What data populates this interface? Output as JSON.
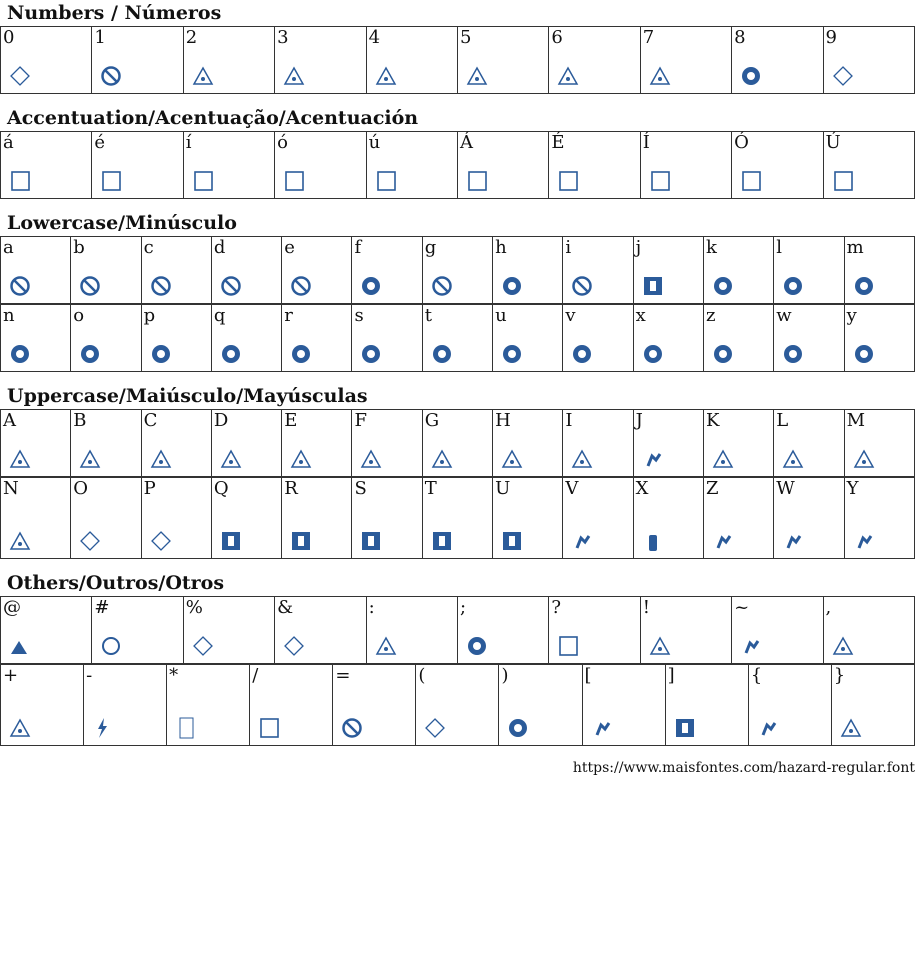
{
  "accent": "#2b5b9a",
  "sections": [
    {
      "title": "Numbers / Números",
      "rows": [
        [
          [
            "0",
            "diamond"
          ],
          [
            "1",
            "prohibit"
          ],
          [
            "2",
            "triangle"
          ],
          [
            "3",
            "triangle"
          ],
          [
            "4",
            "triangle"
          ],
          [
            "5",
            "triangle"
          ],
          [
            "6",
            "triangle"
          ],
          [
            "7",
            "triangle"
          ],
          [
            "8",
            "filled-circle"
          ],
          [
            "9",
            "diamond"
          ]
        ]
      ]
    },
    {
      "title": "Accentuation/Acentuação/Acentuación",
      "rows": [
        [
          [
            "á",
            "square"
          ],
          [
            "é",
            "square"
          ],
          [
            "í",
            "square"
          ],
          [
            "ó",
            "square"
          ],
          [
            "ú",
            "square"
          ],
          [
            "Á",
            "square"
          ],
          [
            "É",
            "square"
          ],
          [
            "Í",
            "square"
          ],
          [
            "Ó",
            "square"
          ],
          [
            "Ú",
            "square"
          ]
        ]
      ]
    },
    {
      "title": "Lowercase/Minúsculo",
      "rows": [
        [
          [
            "a",
            "prohibit"
          ],
          [
            "b",
            "prohibit"
          ],
          [
            "c",
            "prohibit"
          ],
          [
            "d",
            "prohibit"
          ],
          [
            "e",
            "prohibit"
          ],
          [
            "f",
            "filled-circle"
          ],
          [
            "g",
            "prohibit"
          ],
          [
            "h",
            "filled-circle"
          ],
          [
            "i",
            "prohibit"
          ],
          [
            "j",
            "filled-square"
          ],
          [
            "k",
            "filled-circle"
          ],
          [
            "l",
            "filled-circle"
          ],
          [
            "m",
            "filled-circle"
          ]
        ],
        [
          [
            "n",
            "filled-circle"
          ],
          [
            "o",
            "filled-circle"
          ],
          [
            "p",
            "filled-circle"
          ],
          [
            "q",
            "filled-circle"
          ],
          [
            "r",
            "filled-circle"
          ],
          [
            "s",
            "filled-circle"
          ],
          [
            "t",
            "filled-circle"
          ],
          [
            "u",
            "filled-circle"
          ],
          [
            "v",
            "filled-circle"
          ],
          [
            "x",
            "filled-circle"
          ],
          [
            "z",
            "filled-circle"
          ],
          [
            "w",
            "filled-circle"
          ],
          [
            "y",
            "filled-circle"
          ]
        ]
      ]
    },
    {
      "title": "Uppercase/Maiúsculo/Mayúsculas",
      "rows": [
        [
          [
            "A",
            "triangle"
          ],
          [
            "B",
            "triangle"
          ],
          [
            "C",
            "triangle"
          ],
          [
            "D",
            "triangle"
          ],
          [
            "E",
            "triangle"
          ],
          [
            "F",
            "triangle"
          ],
          [
            "G",
            "triangle"
          ],
          [
            "H",
            "triangle"
          ],
          [
            "I",
            "triangle"
          ],
          [
            "J",
            "figure"
          ],
          [
            "K",
            "triangle"
          ],
          [
            "L",
            "triangle"
          ],
          [
            "M",
            "triangle"
          ]
        ],
        [
          [
            "N",
            "triangle"
          ],
          [
            "O",
            "diamond"
          ],
          [
            "P",
            "diamond"
          ],
          [
            "Q",
            "filled-square"
          ],
          [
            "R",
            "filled-square"
          ],
          [
            "S",
            "filled-square"
          ],
          [
            "T",
            "filled-square"
          ],
          [
            "U",
            "filled-square"
          ],
          [
            "V",
            "figure"
          ],
          [
            "X",
            "extinguisher"
          ],
          [
            "Z",
            "figure"
          ],
          [
            "W",
            "figure"
          ],
          [
            "Y",
            "figure"
          ]
        ]
      ]
    },
    {
      "title": "Others/Outros/Otros",
      "rows": [
        [
          [
            "@",
            "filled-triangle"
          ],
          [
            "#",
            "circle"
          ],
          [
            "%",
            "diamond"
          ],
          [
            "&",
            "diamond"
          ],
          [
            ":",
            "triangle"
          ],
          [
            ";",
            "filled-circle"
          ],
          [
            "?",
            "square"
          ],
          [
            "!",
            "triangle"
          ],
          [
            "~",
            "figure"
          ],
          [
            ",",
            "triangle"
          ]
        ],
        [
          [
            "+",
            "triangle"
          ],
          [
            "-",
            "bolt"
          ],
          [
            "*",
            "rect"
          ],
          [
            "/",
            "square"
          ],
          [
            "=",
            "prohibit"
          ],
          [
            "(",
            "diamond"
          ],
          [
            ")",
            "filled-circle"
          ],
          [
            "[",
            "figure"
          ],
          [
            "]",
            "filled-square"
          ],
          [
            "{",
            "figure"
          ],
          [
            "}",
            "triangle"
          ]
        ]
      ]
    }
  ],
  "footer_url": "https://www.maisfontes.com/hazard-regular.font"
}
